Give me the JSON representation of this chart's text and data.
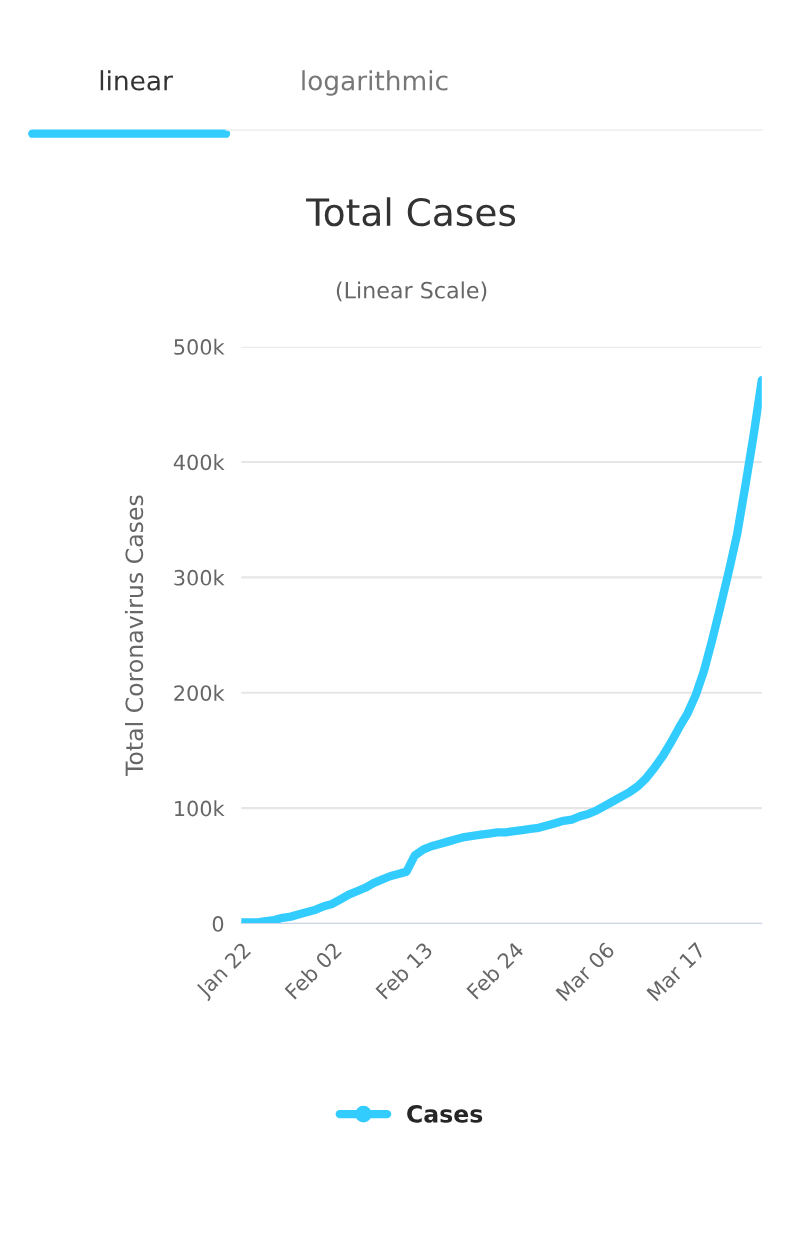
{
  "chart_data": {
    "type": "line",
    "title": "Total Cases",
    "subtitle": "(Linear Scale)",
    "ylabel": "Total Coronavirus Cases",
    "annotations": [
      "linear",
      "logarithmic"
    ],
    "categories": [
      "Jan 22",
      null,
      null,
      null,
      null,
      null,
      null,
      null,
      null,
      null,
      null,
      "Feb 02",
      null,
      null,
      null,
      null,
      null,
      null,
      null,
      null,
      null,
      null,
      "Feb 13",
      null,
      null,
      null,
      null,
      null,
      null,
      null,
      null,
      null,
      null,
      "Feb 24",
      null,
      null,
      null,
      null,
      null,
      null,
      null,
      null,
      null,
      null,
      "Mar 06",
      null,
      null,
      null,
      null,
      null,
      null,
      null,
      null,
      null,
      null,
      "Mar 17",
      null,
      null,
      null,
      null,
      null,
      null,
      null,
      null
    ],
    "series": [
      {
        "name": "Cases",
        "color": "#33ccff",
        "values": [
          1000,
          1000,
          1000,
          2000,
          3000,
          5000,
          6000,
          8000,
          10000,
          12000,
          15000,
          17000,
          21000,
          25000,
          28000,
          31000,
          35000,
          38000,
          41000,
          43000,
          45000,
          59000,
          64000,
          67000,
          69000,
          71000,
          73000,
          75000,
          76000,
          77000,
          78000,
          79000,
          79000,
          80000,
          81000,
          82000,
          83000,
          85000,
          87000,
          89000,
          90000,
          93000,
          95000,
          98000,
          102000,
          106000,
          110000,
          114000,
          119000,
          126000,
          135000,
          145000,
          157000,
          170000,
          182000,
          198000,
          219000,
          246000,
          275000,
          305000,
          337000,
          379000,
          423000,
          471000
        ]
      }
    ],
    "ylim": [
      0,
      500000
    ],
    "yticks": [
      0,
      {
        "value": 100000,
        "label": "100k"
      },
      {
        "value": 200000,
        "label": "200k"
      },
      {
        "value": 300000,
        "label": "300k"
      },
      {
        "value": 400000,
        "label": "400k"
      },
      {
        "value": 500000,
        "label": "500k"
      }
    ],
    "grid": "y",
    "legend": "bottom",
    "marker": "none",
    "line_style": "solid"
  }
}
